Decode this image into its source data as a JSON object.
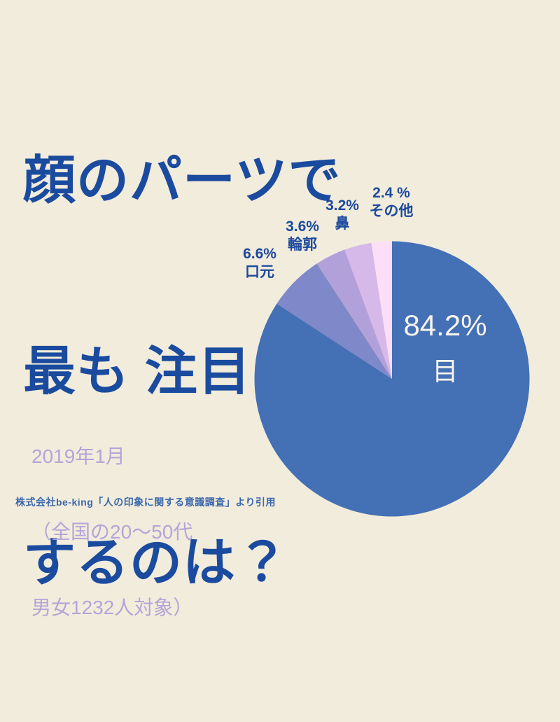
{
  "page": {
    "background_color": "#f2ecdc"
  },
  "title": {
    "color": "#1a4b9e",
    "lines": [
      "顔のパーツで",
      "最も 注目",
      "するのは？"
    ]
  },
  "survey_info": {
    "color": "#b3a5d8",
    "lines": [
      "2019年1月",
      "（全国の20〜50代",
      "男女1232人対象）"
    ]
  },
  "citation": {
    "color": "#3a68ac",
    "text": "株式会社be-king「人の印象に関する意識調査」より引用"
  },
  "chart_data": {
    "type": "pie",
    "title": "顔のパーツで最も注目するのは？",
    "start_angle_deg": 0,
    "direction": "clockwise",
    "legend": "none",
    "total": 100,
    "slices": [
      {
        "id": "eyes",
        "label": "目",
        "value": 84.2,
        "pct_label": "84.2%",
        "color": "#4470b5",
        "label_position": "inside",
        "label_color": "#f7f4ee"
      },
      {
        "id": "mouth",
        "label": "口元",
        "value": 6.6,
        "pct_label": "6.6%",
        "color": "#7f88c8",
        "label_position": "outside",
        "label_color": "#1c4a9e"
      },
      {
        "id": "outline",
        "label": "輪郭",
        "value": 3.6,
        "pct_label": "3.6%",
        "color": "#b2a0db",
        "label_position": "outside",
        "label_color": "#1c4a9e"
      },
      {
        "id": "nose",
        "label": "鼻",
        "value": 3.2,
        "pct_label": "3.2%",
        "color": "#d6b9e8",
        "label_position": "outside",
        "label_color": "#1c4a9e"
      },
      {
        "id": "other",
        "label": "その他",
        "value": 2.4,
        "pct_label": "2.4 %",
        "color": "#fcdef9",
        "label_position": "outside",
        "label_color": "#1c4a9e"
      }
    ]
  }
}
